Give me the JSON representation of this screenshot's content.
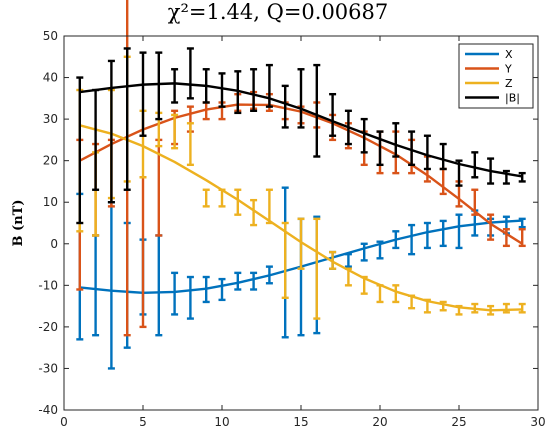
{
  "chart_data": {
    "type": "line",
    "title": "χ²=1.44, Q=0.00687",
    "xlabel": "",
    "ylabel": "B (nT)",
    "xlim": [
      0,
      30
    ],
    "ylim": [
      -40,
      50
    ],
    "xticks": [
      "0",
      "5",
      "10",
      "15",
      "20",
      "25",
      "30"
    ],
    "yticks": [
      "-40",
      "-30",
      "-20",
      "-10",
      "0",
      "10",
      "20",
      "30",
      "40",
      "50"
    ],
    "grid": false,
    "legend_position": "top-right",
    "series": [
      {
        "name": "X",
        "color": "#0072BD",
        "fit": [
          [
            1,
            -10.5
          ],
          [
            3,
            -11.3
          ],
          [
            5,
            -11.8
          ],
          [
            7,
            -11.6
          ],
          [
            9,
            -10.8
          ],
          [
            11,
            -9.4
          ],
          [
            13,
            -7.6
          ],
          [
            15,
            -5.5
          ],
          [
            17,
            -3.3
          ],
          [
            19,
            -1.1
          ],
          [
            21,
            1.0
          ],
          [
            23,
            2.8
          ],
          [
            25,
            4.2
          ],
          [
            27,
            5.1
          ],
          [
            29,
            5.6
          ]
        ],
        "points": [
          {
            "x": 1,
            "y": -5.5,
            "err": 17.5
          },
          {
            "x": 2,
            "y": -10,
            "err": 12
          },
          {
            "x": 3,
            "y": -10,
            "err": 20
          },
          {
            "x": 4,
            "y": -10,
            "err": 15
          },
          {
            "x": 5,
            "y": -8,
            "err": 9
          },
          {
            "x": 6,
            "y": -10,
            "err": 12
          },
          {
            "x": 7,
            "y": -12,
            "err": 5
          },
          {
            "x": 8,
            "y": -13,
            "err": 5
          },
          {
            "x": 9,
            "y": -11,
            "err": 3
          },
          {
            "x": 10,
            "y": -11,
            "err": 2.5
          },
          {
            "x": 11,
            "y": -9,
            "err": 2
          },
          {
            "x": 12,
            "y": -9,
            "err": 2
          },
          {
            "x": 13,
            "y": -7.5,
            "err": 2
          },
          {
            "x": 14,
            "y": -4.5,
            "err": 18
          },
          {
            "x": 15,
            "y": -8,
            "err": 14
          },
          {
            "x": 16,
            "y": -7.5,
            "err": 14
          },
          {
            "x": 17,
            "y": -4,
            "err": 2
          },
          {
            "x": 18,
            "y": -4,
            "err": 1.5
          },
          {
            "x": 19,
            "y": -2,
            "err": 2
          },
          {
            "x": 20,
            "y": -1.5,
            "err": 2
          },
          {
            "x": 21,
            "y": 1,
            "err": 2
          },
          {
            "x": 22,
            "y": 1,
            "err": 3.5
          },
          {
            "x": 23,
            "y": 2,
            "err": 3
          },
          {
            "x": 24,
            "y": 2.5,
            "err": 3
          },
          {
            "x": 25,
            "y": 3,
            "err": 4
          },
          {
            "x": 26,
            "y": 5,
            "err": 3
          },
          {
            "x": 27,
            "y": 4,
            "err": 2
          },
          {
            "x": 28,
            "y": 4.5,
            "err": 2
          },
          {
            "x": 29,
            "y": 5,
            "err": 1
          }
        ]
      },
      {
        "name": "Y",
        "color": "#D95319",
        "fit": [
          [
            1,
            20
          ],
          [
            3,
            24
          ],
          [
            5,
            27.5
          ],
          [
            7,
            30.3
          ],
          [
            9,
            32.3
          ],
          [
            11,
            33.5
          ],
          [
            13,
            33.4
          ],
          [
            15,
            31.8
          ],
          [
            17,
            29
          ],
          [
            19,
            25.5
          ],
          [
            21,
            21.5
          ],
          [
            23,
            16.5
          ],
          [
            25,
            10.8
          ],
          [
            27,
            4.8
          ],
          [
            29,
            0
          ]
        ],
        "points": [
          {
            "x": 1,
            "y": 7,
            "err": 18
          },
          {
            "x": 2,
            "y": 13,
            "err": 11
          },
          {
            "x": 3,
            "y": 17,
            "err": 8
          },
          {
            "x": 4,
            "y": 22,
            "err": 44
          },
          {
            "x": 5,
            "y": -2,
            "err": 18
          },
          {
            "x": 6,
            "y": 13.5,
            "err": 11.5
          },
          {
            "x": 7,
            "y": 28,
            "err": 4
          },
          {
            "x": 8,
            "y": 30,
            "err": 3
          },
          {
            "x": 9,
            "y": 32,
            "err": 2
          },
          {
            "x": 10,
            "y": 32,
            "err": 2
          },
          {
            "x": 11,
            "y": 34,
            "err": 2
          },
          {
            "x": 12,
            "y": 34.5,
            "err": 2
          },
          {
            "x": 13,
            "y": 34,
            "err": 2
          },
          {
            "x": 14,
            "y": 32,
            "err": 2
          },
          {
            "x": 15,
            "y": 31,
            "err": 2
          },
          {
            "x": 16,
            "y": 31,
            "err": 3
          },
          {
            "x": 17,
            "y": 28,
            "err": 3
          },
          {
            "x": 18,
            "y": 26,
            "err": 3
          },
          {
            "x": 19,
            "y": 23,
            "err": 4
          },
          {
            "x": 20,
            "y": 22,
            "err": 5
          },
          {
            "x": 21,
            "y": 22,
            "err": 5
          },
          {
            "x": 22,
            "y": 21,
            "err": 4
          },
          {
            "x": 23,
            "y": 18,
            "err": 3
          },
          {
            "x": 24,
            "y": 15,
            "err": 3
          },
          {
            "x": 25,
            "y": 12,
            "err": 3
          },
          {
            "x": 26,
            "y": 10,
            "err": 3
          },
          {
            "x": 27,
            "y": 4,
            "err": 3
          },
          {
            "x": 28,
            "y": 1.5,
            "err": 2
          },
          {
            "x": 29,
            "y": 1.5,
            "err": 2
          }
        ]
      },
      {
        "name": "Z",
        "color": "#EDB120",
        "fit": [
          [
            1,
            28.5
          ],
          [
            3,
            26.5
          ],
          [
            5,
            23.5
          ],
          [
            7,
            19.7
          ],
          [
            9,
            15.3
          ],
          [
            11,
            10.6
          ],
          [
            13,
            5.5
          ],
          [
            15,
            0.4
          ],
          [
            17,
            -4.3
          ],
          [
            19,
            -8.3
          ],
          [
            21,
            -11.5
          ],
          [
            23,
            -13.8
          ],
          [
            25,
            -15.3
          ],
          [
            27,
            -16
          ],
          [
            29,
            -15.8
          ]
        ],
        "points": [
          {
            "x": 1,
            "y": 20,
            "err": 17
          },
          {
            "x": 2,
            "y": 12,
            "err": 10
          },
          {
            "x": 3,
            "y": 24,
            "err": 13
          },
          {
            "x": 4,
            "y": 30,
            "err": 15
          },
          {
            "x": 5,
            "y": 24,
            "err": 8
          },
          {
            "x": 6,
            "y": 27.5,
            "err": 4
          },
          {
            "x": 7,
            "y": 27,
            "err": 4
          },
          {
            "x": 8,
            "y": 24,
            "err": 5
          },
          {
            "x": 9,
            "y": 11,
            "err": 2
          },
          {
            "x": 10,
            "y": 11,
            "err": 2
          },
          {
            "x": 11,
            "y": 10,
            "err": 3
          },
          {
            "x": 12,
            "y": 7.5,
            "err": 3
          },
          {
            "x": 13,
            "y": 9,
            "err": 4
          },
          {
            "x": 14,
            "y": -4,
            "err": 9
          },
          {
            "x": 15,
            "y": 0,
            "err": 6
          },
          {
            "x": 16,
            "y": -6,
            "err": 12
          },
          {
            "x": 17,
            "y": -4,
            "err": 2
          },
          {
            "x": 18,
            "y": -8,
            "err": 2
          },
          {
            "x": 19,
            "y": -10,
            "err": 2
          },
          {
            "x": 20,
            "y": -12,
            "err": 2
          },
          {
            "x": 21,
            "y": -12,
            "err": 2
          },
          {
            "x": 22,
            "y": -14,
            "err": 1.5
          },
          {
            "x": 23,
            "y": -15,
            "err": 1.5
          },
          {
            "x": 24,
            "y": -15,
            "err": 1
          },
          {
            "x": 25,
            "y": -16,
            "err": 1
          },
          {
            "x": 26,
            "y": -15.5,
            "err": 1
          },
          {
            "x": 27,
            "y": -16,
            "err": 1
          },
          {
            "x": 28,
            "y": -15.5,
            "err": 1
          },
          {
            "x": 29,
            "y": -15.5,
            "err": 1
          }
        ]
      },
      {
        "name": "|B|",
        "color": "#000000",
        "fit": [
          [
            1,
            36.5
          ],
          [
            3,
            37.5
          ],
          [
            5,
            38.3
          ],
          [
            7,
            38.6
          ],
          [
            9,
            38
          ],
          [
            11,
            36.8
          ],
          [
            13,
            35
          ],
          [
            15,
            32.5
          ],
          [
            17,
            29.5
          ],
          [
            19,
            26.6
          ],
          [
            21,
            23.8
          ],
          [
            23,
            21.3
          ],
          [
            25,
            19.2
          ],
          [
            27,
            17.5
          ],
          [
            29,
            16.2
          ]
        ],
        "points": [
          {
            "x": 1,
            "y": 22.5,
            "err": 17.5
          },
          {
            "x": 2,
            "y": 25,
            "err": 12
          },
          {
            "x": 3,
            "y": 27,
            "err": 17
          },
          {
            "x": 4,
            "y": 30,
            "err": 17
          },
          {
            "x": 5,
            "y": 36,
            "err": 10
          },
          {
            "x": 6,
            "y": 38,
            "err": 8
          },
          {
            "x": 7,
            "y": 38,
            "err": 4
          },
          {
            "x": 8,
            "y": 41,
            "err": 6
          },
          {
            "x": 9,
            "y": 38,
            "err": 4
          },
          {
            "x": 10,
            "y": 37,
            "err": 4
          },
          {
            "x": 11,
            "y": 36.5,
            "err": 5
          },
          {
            "x": 12,
            "y": 37,
            "err": 5
          },
          {
            "x": 13,
            "y": 38,
            "err": 5
          },
          {
            "x": 14,
            "y": 33,
            "err": 5
          },
          {
            "x": 15,
            "y": 35,
            "err": 7
          },
          {
            "x": 16,
            "y": 32,
            "err": 11
          },
          {
            "x": 17,
            "y": 31,
            "err": 5
          },
          {
            "x": 18,
            "y": 28,
            "err": 4
          },
          {
            "x": 19,
            "y": 26,
            "err": 4
          },
          {
            "x": 20,
            "y": 23,
            "err": 4
          },
          {
            "x": 21,
            "y": 25,
            "err": 4
          },
          {
            "x": 22,
            "y": 23,
            "err": 4
          },
          {
            "x": 23,
            "y": 22,
            "err": 4
          },
          {
            "x": 24,
            "y": 21,
            "err": 3
          },
          {
            "x": 25,
            "y": 17,
            "err": 3
          },
          {
            "x": 26,
            "y": 19,
            "err": 3
          },
          {
            "x": 27,
            "y": 17.5,
            "err": 3
          },
          {
            "x": 28,
            "y": 16,
            "err": 1.5
          },
          {
            "x": 29,
            "y": 16,
            "err": 1
          }
        ]
      }
    ]
  }
}
